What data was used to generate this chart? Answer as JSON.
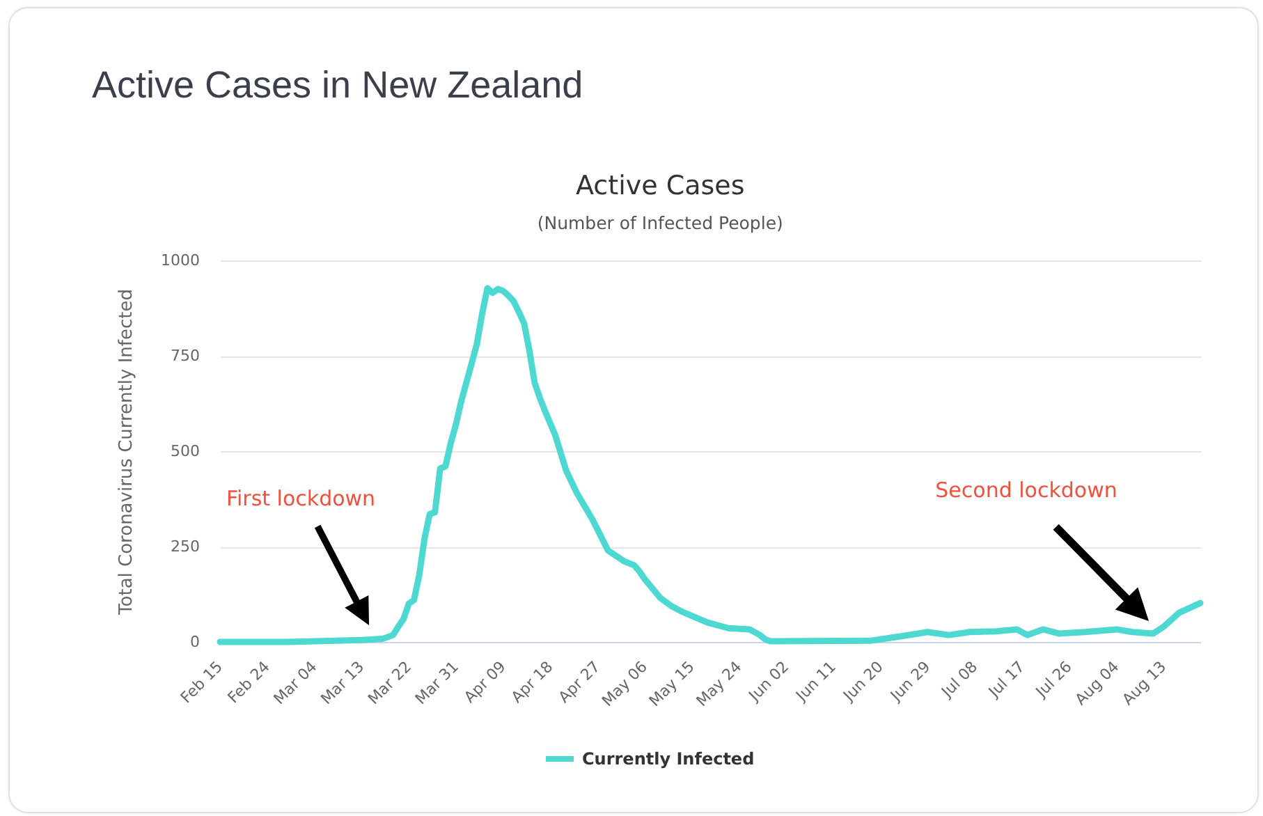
{
  "chart_data": {
    "type": "line",
    "title": "Active Cases",
    "subtitle": "(Number of Infected People)",
    "ylabel": "Total Coronavirus Currently Infected",
    "annotations": [
      "Active Cases in New Zealand",
      "First lockdown",
      "Second lockdown"
    ],
    "x": [
      "--02-15",
      "--02-28",
      "--03-13",
      "--03-17",
      "--03-19",
      "--03-20",
      "--03-21",
      "--03-22",
      "--03-23",
      "--03-24",
      "--03-25",
      "--03-26",
      "--03-27",
      "--03-28",
      "--03-29",
      "--03-30",
      "--03-31",
      "--04-01",
      "--04-02",
      "--04-03",
      "--04-04",
      "--04-05",
      "--04-06",
      "--04-07",
      "--04-08",
      "--04-09",
      "--04-10",
      "--04-11",
      "--04-12",
      "--04-13",
      "--04-14",
      "--04-15",
      "--04-16",
      "--04-17",
      "--04-19",
      "--04-21",
      "--04-23",
      "--04-26",
      "--04-27",
      "--04-29",
      "--05-02",
      "--05-04",
      "--05-05",
      "--05-06",
      "--05-09",
      "--05-11",
      "--05-13",
      "--05-18",
      "--05-22",
      "--05-26",
      "--05-28",
      "--05-29",
      "--05-30",
      "--06-18",
      "--06-24",
      "--06-29",
      "--07-03",
      "--07-07",
      "--07-12",
      "--07-16",
      "--07-18",
      "--07-21",
      "--07-24",
      "--07-29",
      "--08-04",
      "--08-07",
      "--08-11",
      "--08-13",
      "--08-16",
      "--08-20"
    ],
    "series": [
      {
        "name": "Currently Infected",
        "color": "#4dd8d2",
        "values": [
          0,
          0,
          5,
          8,
          18,
          40,
          60,
          100,
          110,
          175,
          270,
          335,
          340,
          455,
          460,
          520,
          570,
          630,
          680,
          730,
          781,
          860,
          927,
          915,
          925,
          920,
          908,
          893,
          865,
          835,
          765,
          680,
          640,
          605,
          540,
          450,
          392,
          322,
          295,
          240,
          212,
          201,
          185,
          165,
          115,
          95,
          80,
          51,
          36,
          33,
          18,
          7,
          2,
          3,
          15,
          26,
          18,
          26,
          28,
          33,
          18,
          33,
          22,
          26,
          33,
          26,
          22,
          40,
          77,
          102
        ]
      }
    ],
    "xlim": [
      "--02-15",
      "--08-20"
    ],
    "xticks": [
      {
        "value": "--02-15",
        "label": "Feb 15"
      },
      {
        "value": "--02-24",
        "label": "Feb 24"
      },
      {
        "value": "--03-04",
        "label": "Mar 04"
      },
      {
        "value": "--03-13",
        "label": "Mar 13"
      },
      {
        "value": "--03-22",
        "label": "Mar 22"
      },
      {
        "value": "--03-31",
        "label": "Mar 31"
      },
      {
        "value": "--04-09",
        "label": "Apr 09"
      },
      {
        "value": "--04-18",
        "label": "Apr 18"
      },
      {
        "value": "--04-27",
        "label": "Apr 27"
      },
      {
        "value": "--05-06",
        "label": "May 06"
      },
      {
        "value": "--05-15",
        "label": "May 15"
      },
      {
        "value": "--05-24",
        "label": "May 24"
      },
      {
        "value": "--06-02",
        "label": "Jun 02"
      },
      {
        "value": "--06-11",
        "label": "Jun 11"
      },
      {
        "value": "--06-20",
        "label": "Jun 20"
      },
      {
        "value": "--06-29",
        "label": "Jun 29"
      },
      {
        "value": "--07-08",
        "label": "Jul 08"
      },
      {
        "value": "--07-17",
        "label": "Jul 17"
      },
      {
        "value": "--07-26",
        "label": "Jul 26"
      },
      {
        "value": "--08-04",
        "label": "Aug 04"
      },
      {
        "value": "--08-13",
        "label": "Aug 13"
      }
    ],
    "ylim": [
      0,
      1000
    ],
    "yticks": [
      0,
      250,
      500,
      750,
      1000
    ],
    "grid": "y",
    "legend": "bottom"
  }
}
